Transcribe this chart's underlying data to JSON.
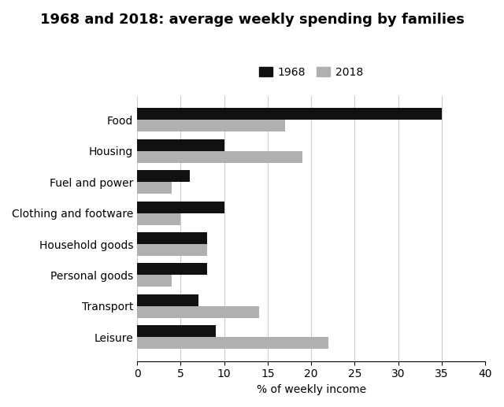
{
  "title": "1968 and 2018: average weekly spending by families",
  "xlabel": "% of weekly income",
  "categories": [
    "Food",
    "Housing",
    "Fuel and power",
    "Clothing and footware",
    "Household goods",
    "Personal goods",
    "Transport",
    "Leisure"
  ],
  "values_1968": [
    35,
    10,
    6,
    10,
    8,
    8,
    7,
    9
  ],
  "values_2018": [
    17,
    19,
    4,
    5,
    8,
    4,
    14,
    22
  ],
  "color_1968": "#111111",
  "color_2018": "#b0b0b0",
  "legend_labels": [
    "1968",
    "2018"
  ],
  "xlim": [
    0,
    40
  ],
  "xticks": [
    0,
    5,
    10,
    15,
    20,
    25,
    30,
    35,
    40
  ],
  "bar_height": 0.38,
  "background_color": "#ffffff",
  "title_fontsize": 13,
  "label_fontsize": 10,
  "tick_fontsize": 10
}
